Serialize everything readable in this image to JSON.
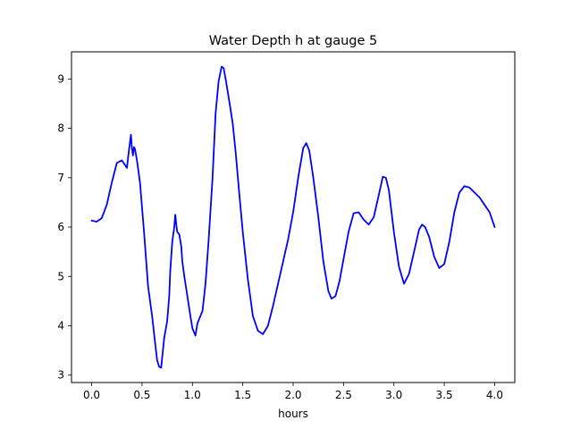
{
  "chart_data": {
    "type": "line",
    "title": "Water Depth h at gauge 5",
    "xlabel": "hours",
    "ylabel": "",
    "xlim": [
      -0.2,
      4.2
    ],
    "ylim": [
      2.85,
      9.55
    ],
    "xticks": [
      0.0,
      0.5,
      1.0,
      1.5,
      2.0,
      2.5,
      3.0,
      3.5,
      4.0
    ],
    "xtick_labels": [
      "0.0",
      "0.5",
      "1.0",
      "1.5",
      "2.0",
      "2.5",
      "3.0",
      "3.5",
      "4.0"
    ],
    "yticks": [
      3,
      4,
      5,
      6,
      7,
      8,
      9
    ],
    "ytick_labels": [
      "3",
      "4",
      "5",
      "6",
      "7",
      "8",
      "9"
    ],
    "grid": false,
    "legend": false,
    "series": [
      {
        "color": "#0000ff",
        "x": [
          0.0,
          0.05,
          0.1,
          0.15,
          0.2,
          0.25,
          0.3,
          0.35,
          0.37,
          0.39,
          0.4,
          0.41,
          0.42,
          0.43,
          0.45,
          0.48,
          0.52,
          0.56,
          0.6,
          0.63,
          0.65,
          0.67,
          0.69,
          0.7,
          0.72,
          0.75,
          0.77,
          0.78,
          0.8,
          0.81,
          0.82,
          0.83,
          0.84,
          0.85,
          0.87,
          0.89,
          0.9,
          0.92,
          0.95,
          0.98,
          1.0,
          1.03,
          1.05,
          1.07,
          1.1,
          1.13,
          1.16,
          1.2,
          1.23,
          1.26,
          1.29,
          1.31,
          1.33,
          1.35,
          1.37,
          1.4,
          1.43,
          1.46,
          1.5,
          1.55,
          1.6,
          1.65,
          1.7,
          1.75,
          1.8,
          1.85,
          1.9,
          1.95,
          2.0,
          2.05,
          2.1,
          2.13,
          2.16,
          2.2,
          2.25,
          2.3,
          2.35,
          2.38,
          2.42,
          2.46,
          2.5,
          2.55,
          2.6,
          2.65,
          2.7,
          2.75,
          2.8,
          2.85,
          2.89,
          2.92,
          2.95,
          3.0,
          3.05,
          3.1,
          3.15,
          3.2,
          3.25,
          3.28,
          3.31,
          3.35,
          3.4,
          3.45,
          3.5,
          3.55,
          3.6,
          3.65,
          3.7,
          3.75,
          3.8,
          3.85,
          3.9,
          3.95,
          4.0
        ],
        "y": [
          6.13,
          6.11,
          6.18,
          6.45,
          6.9,
          7.3,
          7.35,
          7.2,
          7.55,
          7.87,
          7.6,
          7.45,
          7.62,
          7.58,
          7.35,
          6.9,
          5.9,
          4.8,
          4.2,
          3.65,
          3.3,
          3.17,
          3.15,
          3.35,
          3.75,
          4.1,
          4.6,
          5.1,
          5.7,
          5.85,
          6.0,
          6.25,
          6.05,
          5.9,
          5.85,
          5.6,
          5.3,
          5.0,
          4.6,
          4.2,
          3.95,
          3.8,
          4.05,
          4.15,
          4.3,
          4.85,
          5.7,
          7.0,
          8.3,
          8.95,
          9.25,
          9.22,
          9.0,
          8.75,
          8.5,
          8.1,
          7.5,
          6.8,
          5.9,
          4.95,
          4.2,
          3.9,
          3.83,
          4.0,
          4.4,
          4.85,
          5.3,
          5.75,
          6.3,
          7.0,
          7.6,
          7.7,
          7.55,
          7.0,
          6.2,
          5.3,
          4.7,
          4.55,
          4.6,
          4.9,
          5.35,
          5.9,
          6.28,
          6.3,
          6.15,
          6.05,
          6.2,
          6.65,
          7.02,
          7.0,
          6.75,
          5.9,
          5.2,
          4.85,
          5.05,
          5.5,
          5.95,
          6.05,
          6.0,
          5.8,
          5.4,
          5.17,
          5.25,
          5.7,
          6.3,
          6.7,
          6.83,
          6.8,
          6.7,
          6.6,
          6.45,
          6.3,
          6.0
        ]
      }
    ]
  }
}
